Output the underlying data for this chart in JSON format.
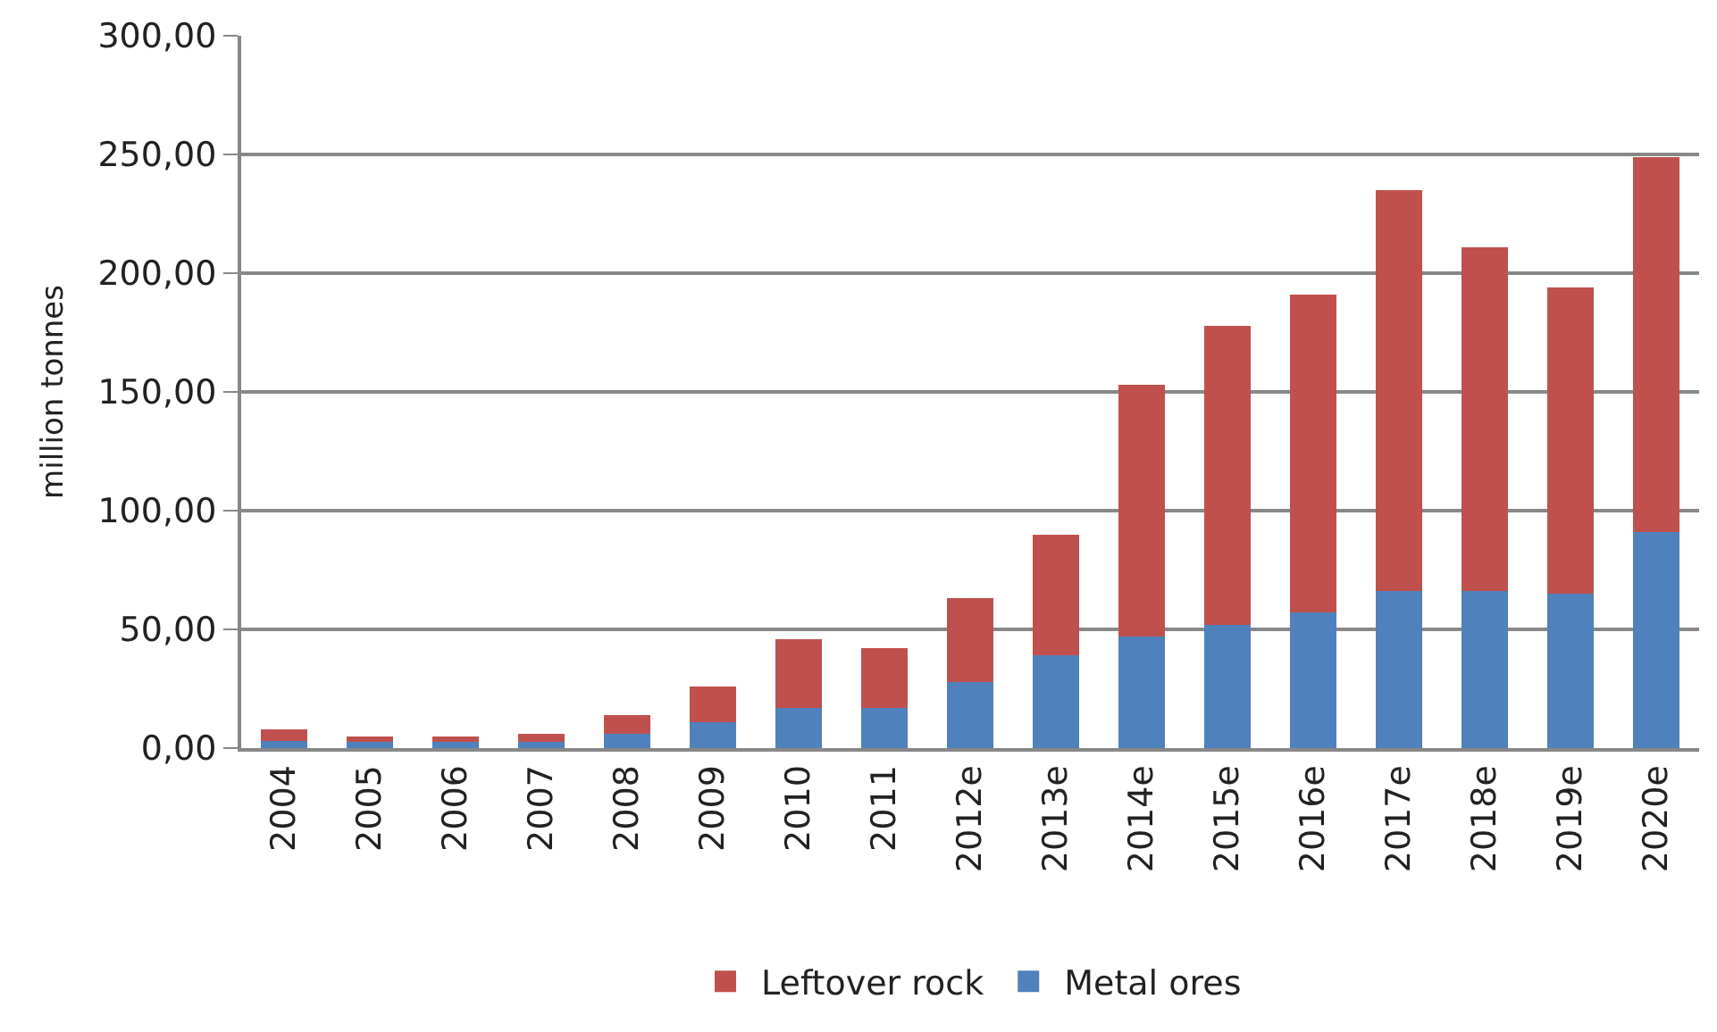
{
  "chart_data": {
    "type": "bar",
    "stacked": true,
    "ylabel": "million tonnes",
    "categories": [
      "2004",
      "2005",
      "2006",
      "2007",
      "2008",
      "2009",
      "2010",
      "2011",
      "2012e",
      "2013e",
      "2014e",
      "2015e",
      "2016e",
      "2017e",
      "2018e",
      "2019e",
      "2020e"
    ],
    "series": [
      {
        "name": "Metal ores",
        "color": "#4f81bd",
        "values": [
          3,
          2.5,
          2.5,
          2.5,
          6,
          11,
          17,
          17,
          28,
          39,
          47,
          52,
          57,
          66,
          66,
          65,
          91
        ]
      },
      {
        "name": "Leftover rock",
        "color": "#c0504d",
        "values": [
          5,
          2.5,
          2.5,
          3.5,
          8,
          15,
          29,
          25,
          35,
          51,
          106,
          126,
          134,
          169,
          145,
          129,
          158
        ]
      }
    ],
    "ylim": [
      0,
      300
    ],
    "yticks": [
      {
        "value": 0,
        "label": "0,00"
      },
      {
        "value": 50,
        "label": "50,00"
      },
      {
        "value": 100,
        "label": "100,00"
      },
      {
        "value": 150,
        "label": "150,00"
      },
      {
        "value": 200,
        "label": "200,00"
      },
      {
        "value": 250,
        "label": "250,00"
      },
      {
        "value": 300,
        "label": "300,00"
      }
    ],
    "grid": "y",
    "legend": "bottom"
  }
}
